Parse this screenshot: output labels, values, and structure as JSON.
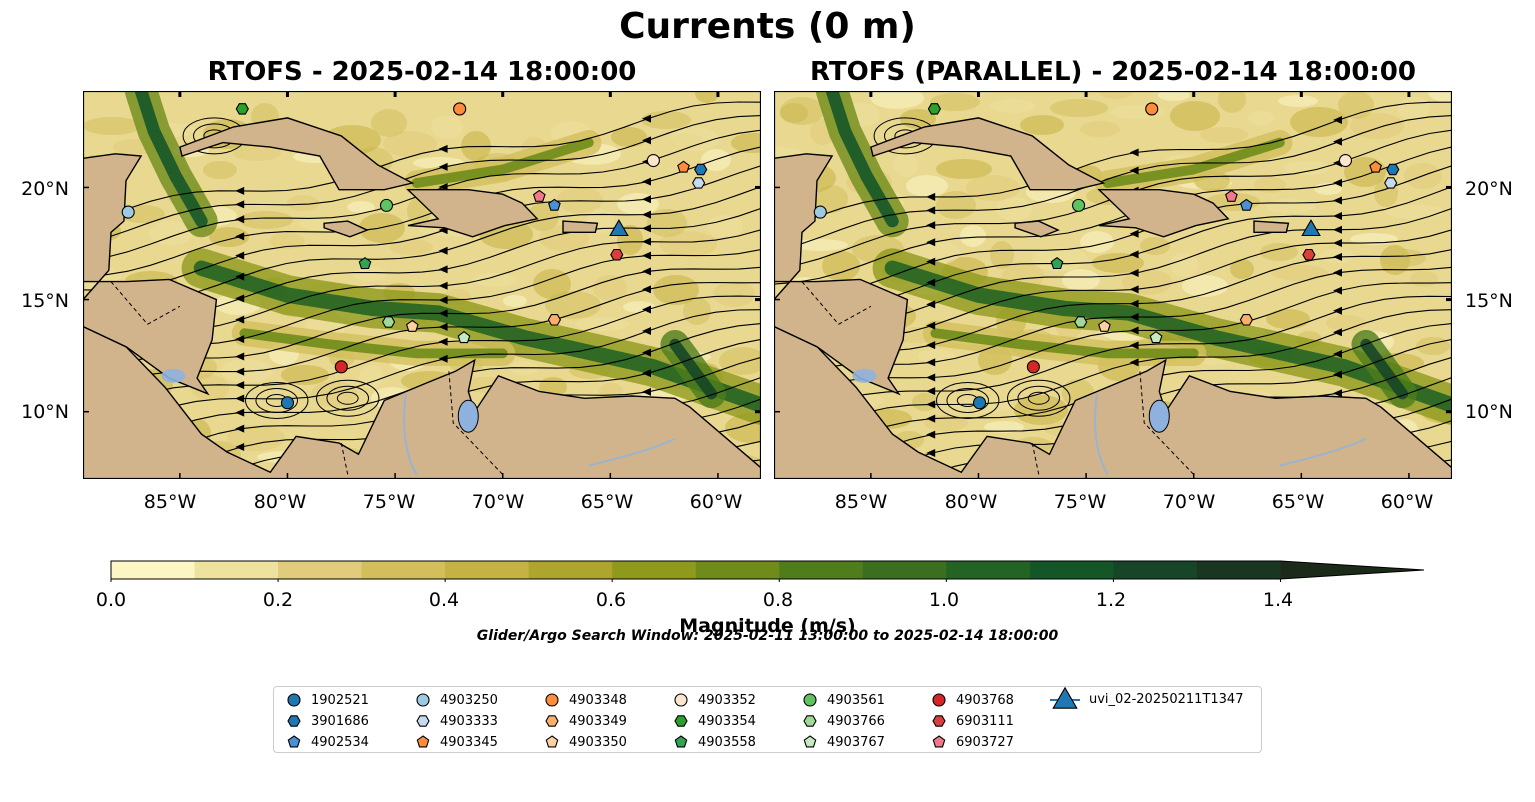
{
  "title": "Currents (0 m)",
  "panels": [
    {
      "title": "RTOFS - 2025-02-14 18:00:00",
      "field": "A"
    },
    {
      "title": "RTOFS (PARALLEL) - 2025-02-14 18:00:00",
      "field": "B"
    }
  ],
  "map_extent": {
    "lon": [
      -89.5,
      -58.0
    ],
    "lat": [
      7.0,
      24.3
    ]
  },
  "lat_ticks": [
    "20°N",
    "15°N",
    "10°N"
  ],
  "lat_values": [
    20,
    15,
    10
  ],
  "lon_ticks": [
    "85°W",
    "80°W",
    "75°W",
    "70°W",
    "65°W",
    "60°W"
  ],
  "lon_values": [
    -85,
    -80,
    -75,
    -70,
    -65,
    -60
  ],
  "colorbar": {
    "label": "Magnitude (m/s)",
    "ticks": [
      "0.0",
      "0.2",
      "0.4",
      "0.6",
      "0.8",
      "1.0",
      "1.2",
      "1.4"
    ],
    "tick_values": [
      0.0,
      0.2,
      0.4,
      0.6,
      0.8,
      1.0,
      1.2,
      1.4
    ],
    "range": [
      0.0,
      1.5
    ],
    "bins": 15,
    "extend": "max",
    "colors": [
      "#fcf6c4",
      "#ede29e",
      "#e0cc7a",
      "#d2bf5c",
      "#c4b244",
      "#aea52e",
      "#8f9a1d",
      "#6f8c1a",
      "#4f7d1c",
      "#3a6f1f",
      "#236424",
      "#155628",
      "#164627",
      "#1a3621",
      "#1c2a19"
    ]
  },
  "search_window": "Glider/Argo Search Window: 2025-02-11 13:00:00 to 2025-02-14 18:00:00",
  "land_color": "#d2b48c",
  "platforms": [
    {
      "id": "1902521",
      "marker": "circle",
      "color": "#1f77b4",
      "lon": -80.0,
      "lat": 10.4
    },
    {
      "id": "3901686",
      "marker": "hexagon",
      "color": "#1f77b4",
      "lon": -60.8,
      "lat": 20.8
    },
    {
      "id": "4902534",
      "marker": "pentagon",
      "color": "#4a90d9",
      "lon": -67.6,
      "lat": 19.2
    },
    {
      "id": "4903250",
      "marker": "circle",
      "color": "#9ecae1",
      "lon": -87.4,
      "lat": 18.9
    },
    {
      "id": "4903333",
      "marker": "hexagon",
      "color": "#c6dbef",
      "lon": -60.9,
      "lat": 20.2
    },
    {
      "id": "4903345",
      "marker": "pentagon",
      "color": "#fd8d3c",
      "lon": -61.6,
      "lat": 20.9
    },
    {
      "id": "4903348",
      "marker": "circle",
      "color": "#fd8d3c",
      "lon": -72.0,
      "lat": 23.5
    },
    {
      "id": "4903349",
      "marker": "hexagon",
      "color": "#fdae6b",
      "lon": -67.6,
      "lat": 14.1
    },
    {
      "id": "4903350",
      "marker": "pentagon",
      "color": "#fdd0a2",
      "lon": -74.2,
      "lat": 13.8
    },
    {
      "id": "4903352",
      "marker": "circle",
      "color": "#fee6ce",
      "lon": -63.0,
      "lat": 21.2
    },
    {
      "id": "4903354",
      "marker": "hexagon",
      "color": "#2ca02c",
      "lon": -82.1,
      "lat": 23.5
    },
    {
      "id": "4903558",
      "marker": "pentagon",
      "color": "#31a354",
      "lon": -76.4,
      "lat": 16.6
    },
    {
      "id": "4903561",
      "marker": "circle",
      "color": "#5fc35f",
      "lon": -75.4,
      "lat": 19.2
    },
    {
      "id": "4903766",
      "marker": "hexagon",
      "color": "#a1d99b",
      "lon": -75.3,
      "lat": 14.0
    },
    {
      "id": "4903767",
      "marker": "pentagon",
      "color": "#c7e9c0",
      "lon": -71.8,
      "lat": 13.3
    },
    {
      "id": "4903768",
      "marker": "circle",
      "color": "#d62728",
      "lon": -77.5,
      "lat": 12.0
    },
    {
      "id": "6903111",
      "marker": "hexagon",
      "color": "#d84040",
      "lon": -64.7,
      "lat": 17.0
    },
    {
      "id": "6903727",
      "marker": "pentagon",
      "color": "#f07a8a",
      "lon": -68.3,
      "lat": 19.6
    },
    {
      "id": "uvi_02-20250211T1347",
      "marker": "triangle",
      "color": "#1f77b4",
      "lon": -64.6,
      "lat": 18.2
    }
  ]
}
